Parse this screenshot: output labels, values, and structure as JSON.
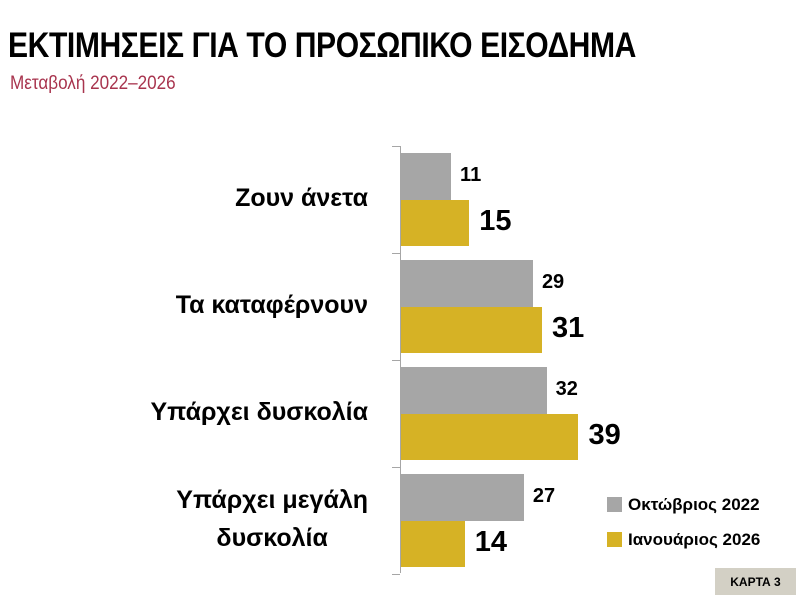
{
  "header": {
    "title": "ΕΚΤΙΜΗΣΕΙΣ ΓΙΑ ΤΟ ΠΡΟΣΩΠΙΚΟ ΕΙΣΟΔΗΜΑ",
    "subtitle": "Μεταβολή 2022–2026"
  },
  "chart_data": {
    "type": "bar",
    "orientation": "horizontal",
    "title": "ΕΚΤΙΜΗΣΕΙΣ ΓΙΑ ΤΟ ΠΡΟΣΩΠΙΚΟ ΕΙΣΟΔΗΜΑ",
    "subtitle": "Μεταβολή 2022–2026",
    "xlabel": "",
    "ylabel": "",
    "categories": [
      "Ζουν άνετα",
      "Τα καταφέρνουν",
      "Υπάρχει δυσκολία",
      "Υπάρχει μεγάλη δυσκολία"
    ],
    "category_lines": [
      [
        "Ζουν άνετα"
      ],
      [
        "Τα καταφέρνουν"
      ],
      [
        "Υπάρχει δυσκολία"
      ],
      [
        "Υπάρχει μεγάλη",
        "δυσκολία"
      ]
    ],
    "series": [
      {
        "name": "Οκτώβριος 2022",
        "color": "#a6a6a6",
        "values": [
          11,
          29,
          32,
          27
        ]
      },
      {
        "name": "Ιανουάριος 2026",
        "color": "#d6b225",
        "values": [
          15,
          31,
          39,
          14
        ]
      }
    ],
    "data_labels": true,
    "grid": false,
    "legend_position": "bottom-right",
    "xlim": [
      0,
      45
    ]
  },
  "legend": {
    "items": [
      {
        "label": "Οκτώβριος 2022",
        "color": "#a6a6a6"
      },
      {
        "label": "Ιανουάριος 2026",
        "color": "#d6b225"
      }
    ]
  },
  "badge": {
    "label": "ΚΑΡΤΑ 3"
  }
}
